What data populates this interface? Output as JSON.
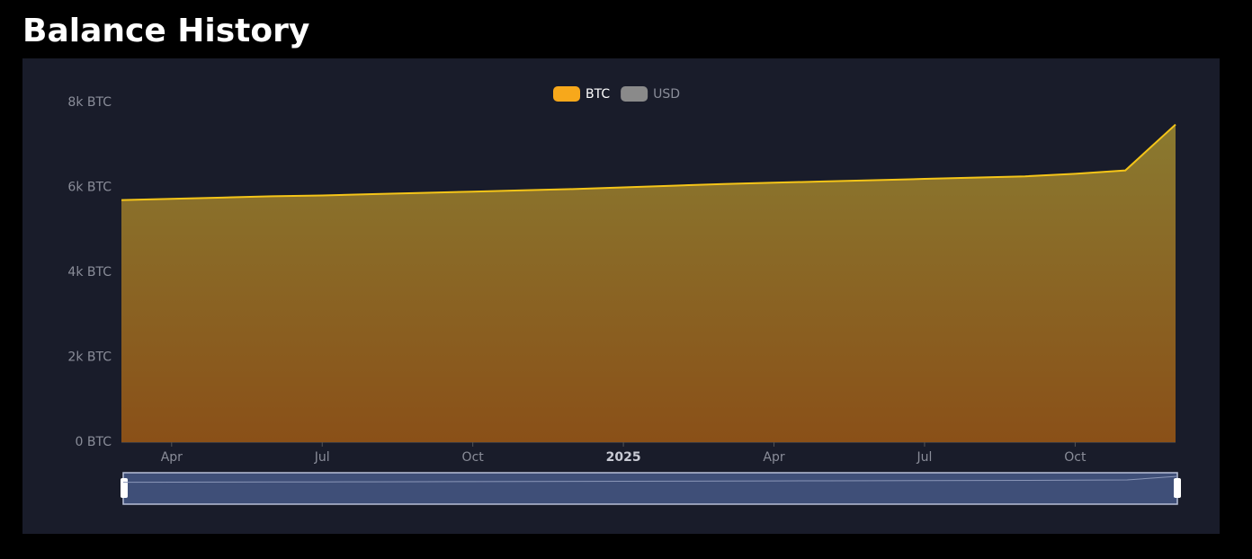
{
  "chart_data": {
    "type": "area",
    "title": "Balance History",
    "x": [
      "2024-03",
      "2024-04",
      "2024-05",
      "2024-06",
      "2024-07",
      "2024-08",
      "2024-09",
      "2024-10",
      "2024-11",
      "2024-12",
      "2025-01",
      "2025-02",
      "2025-03",
      "2025-04",
      "2025-05",
      "2025-06",
      "2025-07",
      "2025-08",
      "2025-09",
      "2025-10",
      "2025-11",
      "2025-12"
    ],
    "series": [
      {
        "name": "BTC",
        "color": "#f5c518",
        "visible": true,
        "values": [
          5700,
          5730,
          5760,
          5790,
          5810,
          5840,
          5870,
          5900,
          5930,
          5960,
          6000,
          6040,
          6080,
          6110,
          6140,
          6170,
          6200,
          6230,
          6260,
          6320,
          6400,
          7480
        ]
      },
      {
        "name": "USD",
        "color": "#8a8a8a",
        "visible": false,
        "values": [
          null,
          null,
          null,
          null,
          null,
          null,
          null,
          null,
          null,
          null,
          null,
          null,
          null,
          null,
          null,
          null,
          null,
          null,
          null,
          null,
          null,
          null
        ]
      }
    ],
    "xlim": [
      "2024-03",
      "2025-12"
    ],
    "xticks": [
      {
        "value": "2024-04",
        "label": "Apr"
      },
      {
        "value": "2024-07",
        "label": "Jul"
      },
      {
        "value": "2024-10",
        "label": "Oct"
      },
      {
        "value": "2025-01",
        "label": "2025"
      },
      {
        "value": "2025-04",
        "label": "Apr"
      },
      {
        "value": "2025-07",
        "label": "Jul"
      },
      {
        "value": "2025-10",
        "label": "Oct"
      }
    ],
    "ylim": [
      0,
      8000
    ],
    "yticks": [
      {
        "value": 0,
        "label": "0 BTC"
      },
      {
        "value": 2000,
        "label": "2k BTC"
      },
      {
        "value": 4000,
        "label": "4k BTC"
      },
      {
        "value": 6000,
        "label": "6k BTC"
      },
      {
        "value": 8000,
        "label": "8k BTC"
      }
    ],
    "grid": false,
    "legend": "top"
  }
}
